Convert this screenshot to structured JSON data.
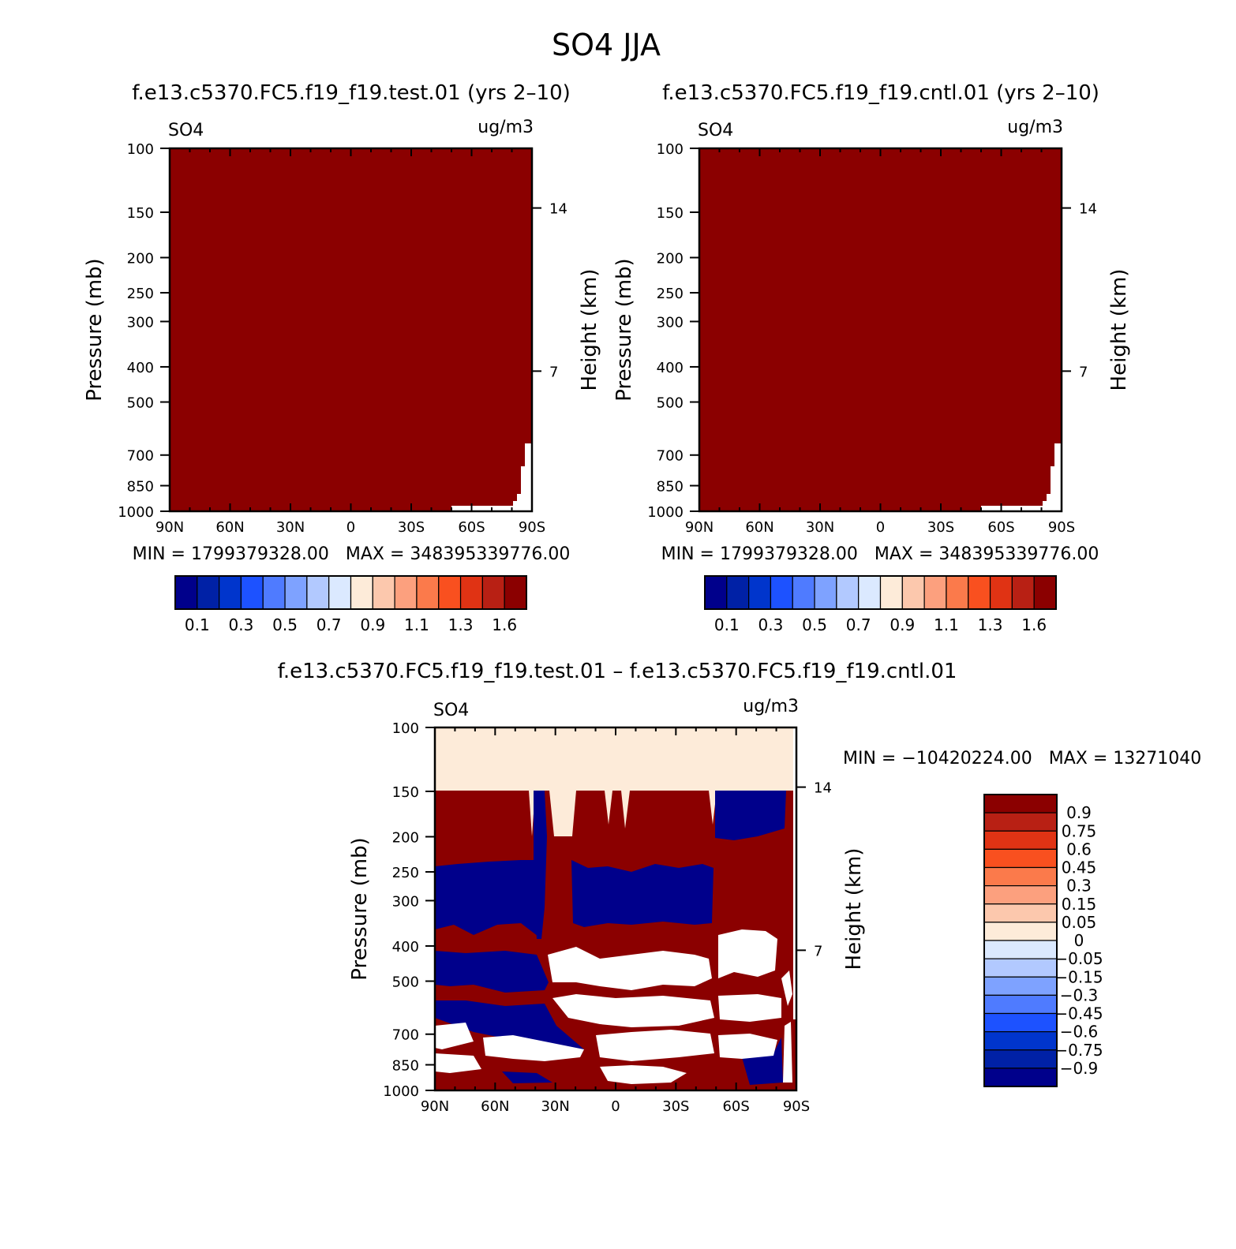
{
  "figure": {
    "title": "SO4  JJA"
  },
  "colors": {
    "cbar_abs": [
      "#00008b",
      "#0021a6",
      "#0035cc",
      "#1d52ff",
      "#4f7bff",
      "#7ea2ff",
      "#b2c9ff",
      "#dbe9ff",
      "#fdebd9",
      "#fcc8ad",
      "#fca07e",
      "#fb7a4b",
      "#f9501f",
      "#e03314",
      "#b82014",
      "#8b0000"
    ],
    "cbar_diff": [
      "#00008b",
      "#0021a6",
      "#0035cc",
      "#1d52ff",
      "#4f7bff",
      "#7ea2ff",
      "#b2c9ff",
      "#dbe9ff",
      "#fdebd9",
      "#fcc8ad",
      "#fca07e",
      "#fb7a4b",
      "#f9501f",
      "#e03314",
      "#b82014",
      "#8b0000"
    ],
    "dark_red": "#8b0000",
    "navy": "#00008b",
    "peach": "#fdebd9"
  },
  "chart_data": [
    {
      "type": "heatmap",
      "title": "f.e13.c5370.FC5.f19_f19.test.01 (yrs 2–10)",
      "left_label": "SO4",
      "right_label": "ug/m3",
      "xlabel": "",
      "ylabel": "Pressure (mb)",
      "ylabel_right": "Height (km)",
      "x_ticks": [
        "90N",
        "60N",
        "30N",
        "0",
        "30S",
        "60S",
        "90S"
      ],
      "xlim": [
        90,
        -90
      ],
      "y_ticks": [
        100,
        150,
        200,
        250,
        300,
        400,
        500,
        700,
        850,
        1000
      ],
      "ylim": [
        100,
        1000
      ],
      "y_ticks_right": [
        "14",
        "7"
      ],
      "min_max_text": "MIN = 1799379328.00   MAX = 348395339776.00",
      "colorbar_labels": [
        "0.1",
        "0.3",
        "0.5",
        "0.7",
        "0.9",
        "1.1",
        "1.3",
        "1.6"
      ],
      "field": "uniform maximum (all values above top contour level)"
    },
    {
      "type": "heatmap",
      "title": "f.e13.c5370.FC5.f19_f19.cntl.01 (yrs 2–10)",
      "left_label": "SO4",
      "right_label": "ug/m3",
      "xlabel": "",
      "ylabel": "Pressure (mb)",
      "ylabel_right": "Height (km)",
      "x_ticks": [
        "90N",
        "60N",
        "30N",
        "0",
        "30S",
        "60S",
        "90S"
      ],
      "xlim": [
        90,
        -90
      ],
      "y_ticks": [
        100,
        150,
        200,
        250,
        300,
        400,
        500,
        700,
        850,
        1000
      ],
      "ylim": [
        100,
        1000
      ],
      "y_ticks_right": [
        "14",
        "7"
      ],
      "min_max_text": "MIN = 1799379328.00   MAX = 348395339776.00",
      "colorbar_labels": [
        "0.1",
        "0.3",
        "0.5",
        "0.7",
        "0.9",
        "1.1",
        "1.3",
        "1.6"
      ],
      "field": "uniform maximum (all values above top contour level)"
    },
    {
      "type": "heatmap",
      "title": "f.e13.c5370.FC5.f19_f19.test.01 – f.e13.c5370.FC5.f19_f19.cntl.01",
      "left_label": "SO4",
      "right_label": "ug/m3",
      "xlabel": "",
      "ylabel": "Pressure (mb)",
      "ylabel_right": "Height (km)",
      "x_ticks": [
        "90N",
        "60N",
        "30N",
        "0",
        "30S",
        "60S",
        "90S"
      ],
      "xlim": [
        90,
        -90
      ],
      "y_ticks": [
        100,
        150,
        200,
        250,
        300,
        400,
        500,
        700,
        850,
        1000
      ],
      "ylim": [
        100,
        1000
      ],
      "y_ticks_right": [
        "14",
        "7"
      ],
      "min_max_text": "MIN = −10420224.00   MAX = 13271040",
      "colorbar_labels": [
        "0.9",
        "0.75",
        "0.6",
        "0.45",
        "0.3",
        "0.15",
        "0.05",
        "0",
        "−0.05",
        "−0.15",
        "−0.3",
        "−0.45",
        "−0.6",
        "−0.75",
        "−0.9"
      ],
      "field": "alternating positive/negative difference bands below 150 mb; near-zero above 150 mb"
    }
  ]
}
